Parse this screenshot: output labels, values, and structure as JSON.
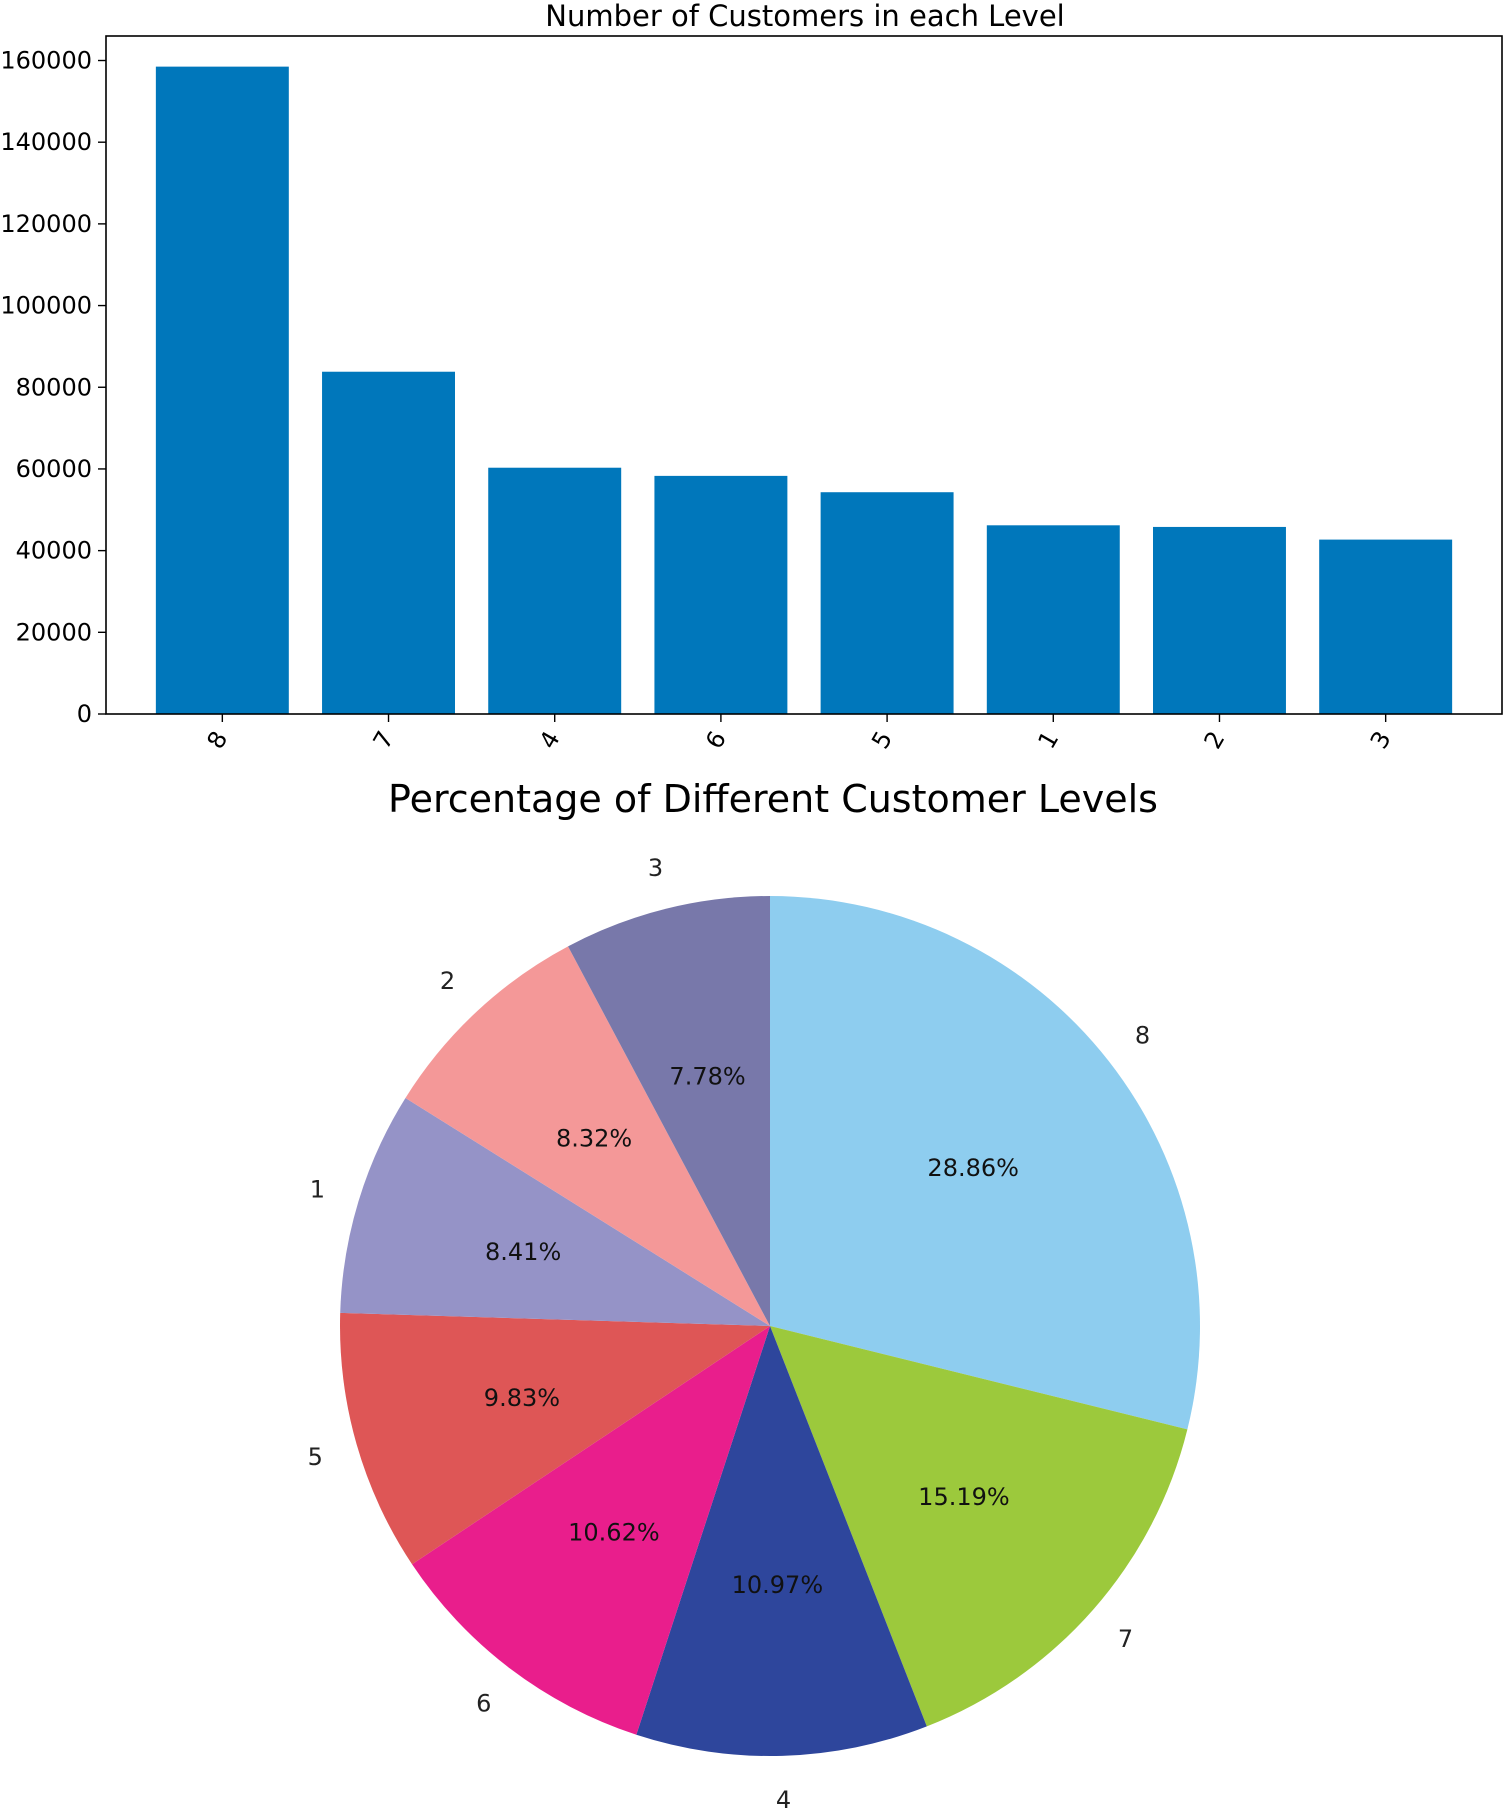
{
  "chart_data": [
    {
      "type": "bar",
      "title": "Number of Customers in each Level",
      "xlabel": "",
      "ylabel": "",
      "categories": [
        "8",
        "7",
        "4",
        "6",
        "5",
        "1",
        "2",
        "3"
      ],
      "values": [
        158500,
        83800,
        60300,
        58300,
        54300,
        46200,
        45800,
        42700
      ],
      "ylim": [
        0,
        166000
      ],
      "yticks": [
        0,
        20000,
        40000,
        60000,
        80000,
        100000,
        120000,
        140000,
        160000
      ],
      "ytick_labels": [
        "0",
        "20000",
        "40000",
        "60000",
        "80000",
        "100000",
        "120000",
        "140000",
        "160000"
      ],
      "xtick_rotation": "rotated",
      "grid": false,
      "bar_color": "#0077bb"
    },
    {
      "type": "pie",
      "title": "Percentage of Different Customer Levels",
      "labels": [
        "8",
        "7",
        "4",
        "6",
        "5",
        "1",
        "2",
        "3"
      ],
      "values": [
        28.86,
        15.19,
        10.97,
        10.62,
        9.83,
        8.41,
        8.32,
        7.78
      ],
      "pct_labels": [
        "28.86%",
        "15.19%",
        "10.97%",
        "10.62%",
        "9.83%",
        "8.41%",
        "8.32%",
        "7.78%"
      ],
      "start": "top",
      "direction": "clockwise",
      "colors": [
        "#8ecdef",
        "#9cc93c",
        "#2e469c",
        "#e91e8c",
        "#de5656",
        "#9593c7",
        "#f49898",
        "#7878aa"
      ]
    }
  ]
}
